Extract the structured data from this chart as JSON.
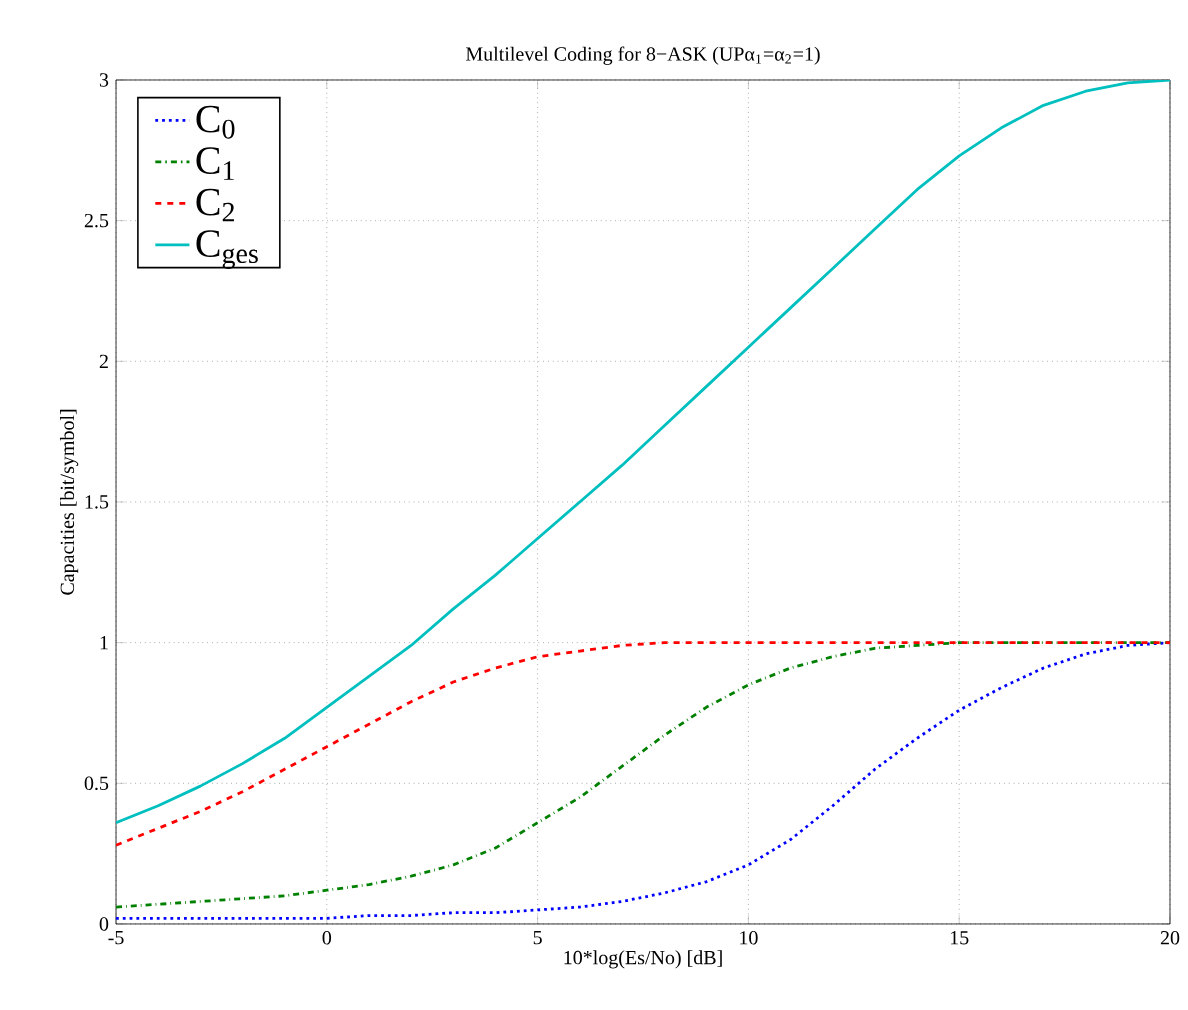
{
  "chart_data": {
    "type": "line",
    "title": "Multilevel Coding for 8−ASK (UPα$_{1}$=α$_{2}$=1)",
    "xlabel": "10*log(Es/No) [dB]",
    "ylabel": "Capacities [bit/symbol]",
    "x": [
      -5,
      -4,
      -3,
      -2,
      -1,
      0,
      1,
      2,
      3,
      4,
      5,
      6,
      7,
      8,
      9,
      10,
      11,
      12,
      13,
      14,
      15,
      16,
      17,
      18,
      19,
      20
    ],
    "series": [
      {
        "name": "C$_{0}$",
        "color": "#0000ff",
        "line_style": "dotted",
        "values": [
          0.02,
          0.02,
          0.02,
          0.02,
          0.02,
          0.02,
          0.03,
          0.03,
          0.04,
          0.04,
          0.05,
          0.06,
          0.08,
          0.11,
          0.15,
          0.21,
          0.3,
          0.42,
          0.55,
          0.66,
          0.76,
          0.84,
          0.91,
          0.96,
          0.99,
          1.0
        ]
      },
      {
        "name": "C$_{1}$",
        "color": "#008000",
        "line_style": "dashdot",
        "values": [
          0.06,
          0.07,
          0.08,
          0.09,
          0.1,
          0.12,
          0.14,
          0.17,
          0.21,
          0.27,
          0.36,
          0.45,
          0.56,
          0.67,
          0.77,
          0.85,
          0.91,
          0.95,
          0.98,
          0.99,
          1.0,
          1.0,
          1.0,
          1.0,
          1.0,
          1.0
        ]
      },
      {
        "name": "C$_{2}$",
        "color": "#ff0000",
        "line_style": "dashed",
        "values": [
          0.28,
          0.34,
          0.4,
          0.47,
          0.55,
          0.63,
          0.71,
          0.79,
          0.86,
          0.91,
          0.95,
          0.97,
          0.99,
          1.0,
          1.0,
          1.0,
          1.0,
          1.0,
          1.0,
          1.0,
          1.0,
          1.0,
          1.0,
          1.0,
          1.0,
          1.0
        ]
      },
      {
        "name": "C$_{ges}$",
        "color": "#00bfbf",
        "line_style": "solid",
        "values": [
          0.36,
          0.42,
          0.49,
          0.57,
          0.66,
          0.77,
          0.88,
          0.99,
          1.12,
          1.24,
          1.37,
          1.5,
          1.63,
          1.77,
          1.91,
          2.05,
          2.19,
          2.33,
          2.47,
          2.61,
          2.73,
          2.83,
          2.91,
          2.96,
          2.99,
          3.0
        ]
      }
    ],
    "xlim": [
      -5,
      20
    ],
    "ylim": [
      0,
      3
    ],
    "xticks": [
      -5,
      0,
      5,
      10,
      15,
      20
    ],
    "yticks": [
      0,
      0.5,
      1,
      1.5,
      2,
      2.5,
      3
    ],
    "grid": true,
    "legend": "top left",
    "marker": "none"
  }
}
